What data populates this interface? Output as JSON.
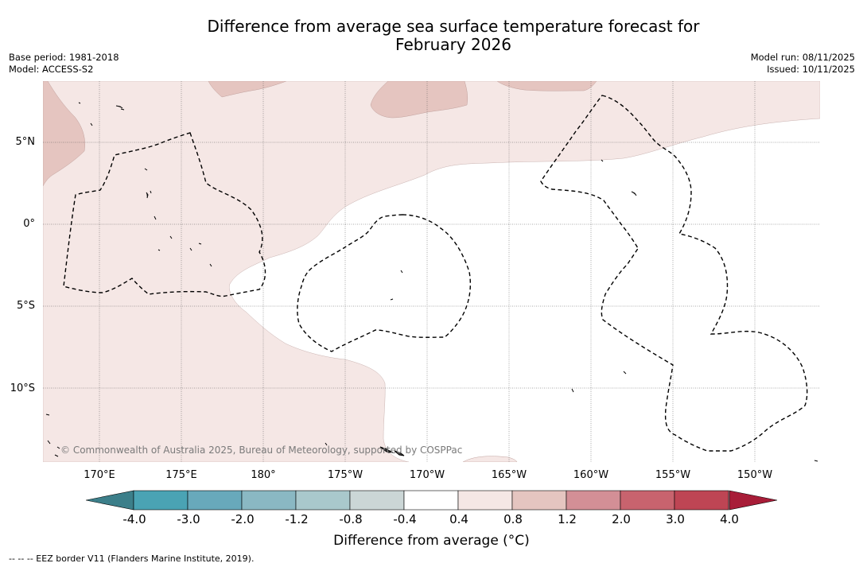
{
  "title": {
    "line1": "Difference from average sea surface temperature forecast for",
    "line2": "February 2026"
  },
  "meta": {
    "base_period": "Base period: 1981-2018",
    "model": "Model: ACCESS-S2",
    "model_run": "Model run: 08/11/2025",
    "issued": "Issued: 10/11/2025"
  },
  "map": {
    "lat_labels": [
      "5°N",
      "0°",
      "5°S",
      "10°S"
    ],
    "lon_labels": [
      "170°E",
      "175°E",
      "180°",
      "175°W",
      "170°W",
      "165°W",
      "160°W",
      "155°W",
      "150°W"
    ],
    "lon_range": [
      "167.4°E",
      "147.2°W"
    ],
    "lat_range": [
      "8.5°N",
      "14.4°S"
    ],
    "copyright": "© Commonwealth of Australia 2025, Bureau of Meteorology, supported by COSPPac"
  },
  "colorbar": {
    "title": "Difference from average (°C)",
    "ticks": [
      "-4.0",
      "-3.0",
      "-2.0",
      "-1.2",
      "-0.8",
      "-0.4",
      "0.4",
      "0.8",
      "1.2",
      "2.0",
      "3.0",
      "4.0"
    ],
    "colors": {
      "under": "#3c7f8a",
      "bins": [
        "#4aa3b4",
        "#68a9bb",
        "#8ab8c3",
        "#a9c8cc",
        "#cbd6d6",
        "#ffffff",
        "#f5e7e5",
        "#e5c5c0",
        "#d38f96",
        "#c8636e",
        "#be4554"
      ],
      "over": "#a81d38"
    }
  },
  "footer": "--  --  -- EEZ border V11 (Flanders Marine Institute, 2019)."
}
